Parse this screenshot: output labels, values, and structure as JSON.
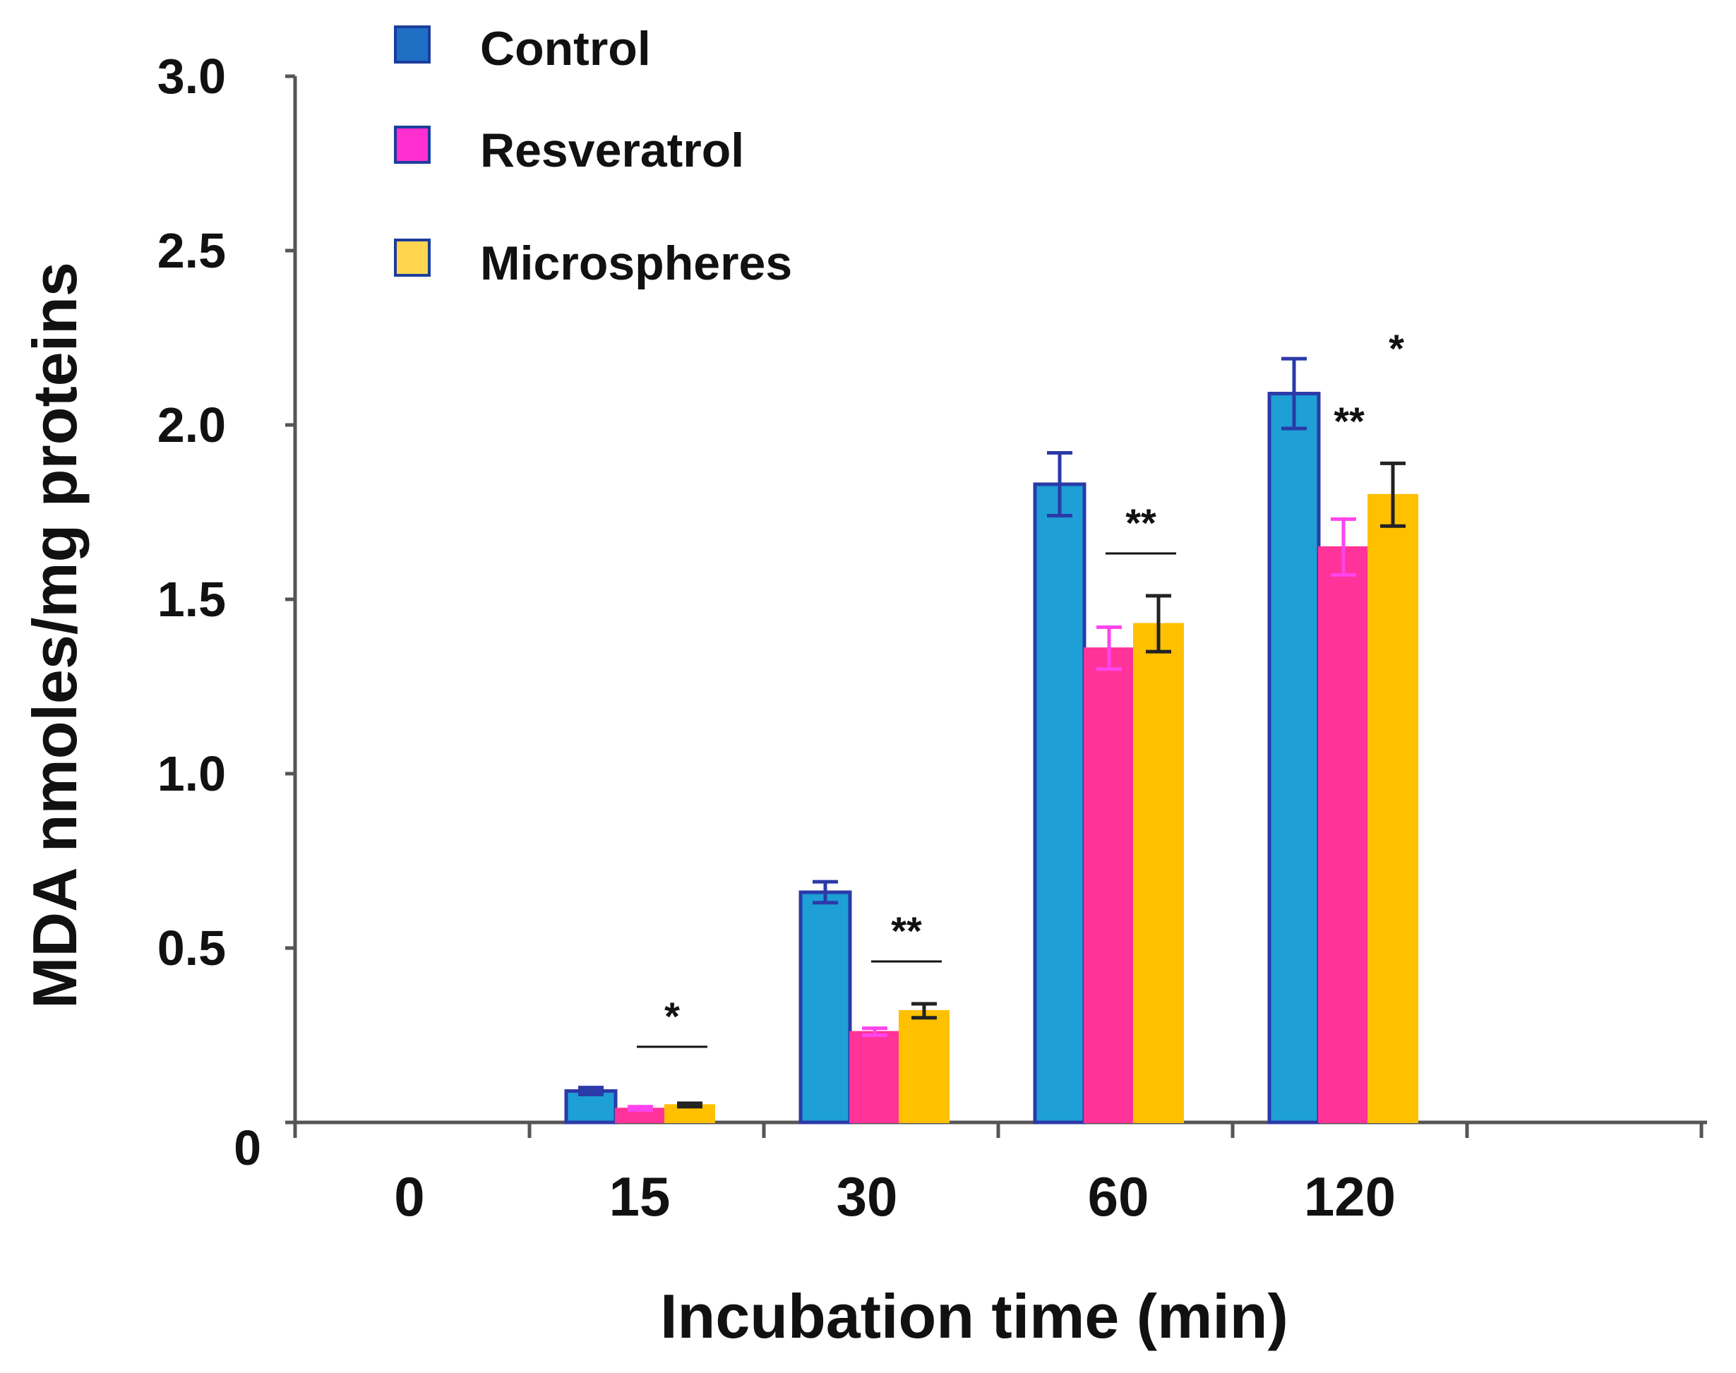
{
  "chart_data": {
    "type": "bar",
    "title": "",
    "xlabel": "Incubation time (min)",
    "ylabel": "MDA nmoles/mg proteins",
    "categories": [
      "0",
      "15",
      "30",
      "60",
      "120"
    ],
    "ylim": [
      0,
      3.0
    ],
    "y_ticks": [
      "0",
      "0.5",
      "1.0",
      "1.5",
      "2.0",
      "2.5",
      "3.0"
    ],
    "grid": false,
    "legend_position": "top-left",
    "series": [
      {
        "name": "Control",
        "legend_color": "#1f6fc5",
        "fill": "#1e9fd6",
        "edge": "#2b3aa8",
        "err_color": "#2b3aa8",
        "values": [
          null,
          0.09,
          0.66,
          1.83,
          2.09
        ],
        "errors": [
          null,
          0.01,
          0.03,
          0.09,
          0.1
        ]
      },
      {
        "name": "Resveratrol",
        "legend_color": "#ff2fd0",
        "fill": "#ff3399",
        "edge": "#ff3399",
        "err_color": "#ff44ee",
        "values": [
          null,
          0.04,
          0.26,
          1.36,
          1.65
        ],
        "errors": [
          null,
          0.005,
          0.01,
          0.06,
          0.08
        ]
      },
      {
        "name": "Microspheres",
        "legend_color": "#ffd54f",
        "fill": "#ffc000",
        "edge": "#ffc000",
        "err_color": "#222222",
        "values": [
          null,
          0.05,
          0.32,
          1.43,
          1.8
        ],
        "errors": [
          null,
          0.005,
          0.02,
          0.08,
          0.09
        ]
      }
    ],
    "annotations": [
      {
        "category": "15",
        "label": "*",
        "type": "bracket"
      },
      {
        "category": "30",
        "label": "**",
        "type": "bracket"
      },
      {
        "category": "60",
        "label": "**",
        "type": "bracket"
      },
      {
        "category": "120",
        "label": "**",
        "type": "pair-1-2"
      },
      {
        "category": "120",
        "label": "*",
        "type": "pair-1-3"
      }
    ]
  }
}
